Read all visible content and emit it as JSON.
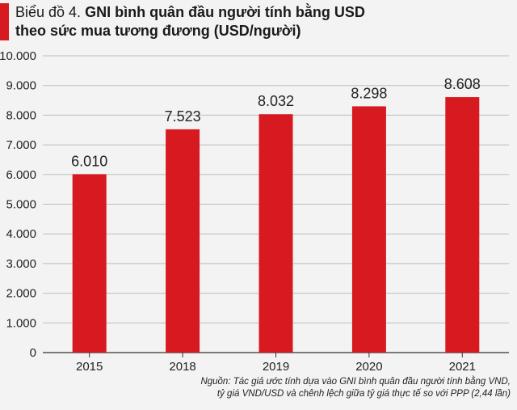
{
  "header": {
    "prefix": "Biểu đồ 4.",
    "title_line1": "GNI bình quân đầu người tính bằng USD",
    "title_line2": "theo sức mua tương đương (USD/người)"
  },
  "chart_data": {
    "type": "bar",
    "categories": [
      "2015",
      "2018",
      "2019",
      "2020",
      "2021"
    ],
    "values": [
      6010,
      7523,
      8032,
      8298,
      8608
    ],
    "value_labels": [
      "6.010",
      "7.523",
      "8.032",
      "8.298",
      "8.608"
    ],
    "ylim": [
      0,
      10000
    ],
    "yticks": [
      0,
      1000,
      2000,
      3000,
      4000,
      5000,
      6000,
      7000,
      8000,
      9000,
      10000
    ],
    "ytick_labels": [
      "0",
      "1.000",
      "2.000",
      "3.000",
      "4.000",
      "5.000",
      "6.000",
      "7.000",
      "8.000",
      "9.000",
      "10.000"
    ],
    "grid": true,
    "bar_color": "#d71920",
    "grid_color": "#bdbdbd"
  },
  "source": {
    "line1": "Nguồn: Tác giả ước tính dựa vào GNI bình quân đầu người tính bằng VND,",
    "line2": "tỷ giá VND/USD và chênh lệch giữa tỷ giá thực tế so với PPP (2,44 lần)"
  }
}
